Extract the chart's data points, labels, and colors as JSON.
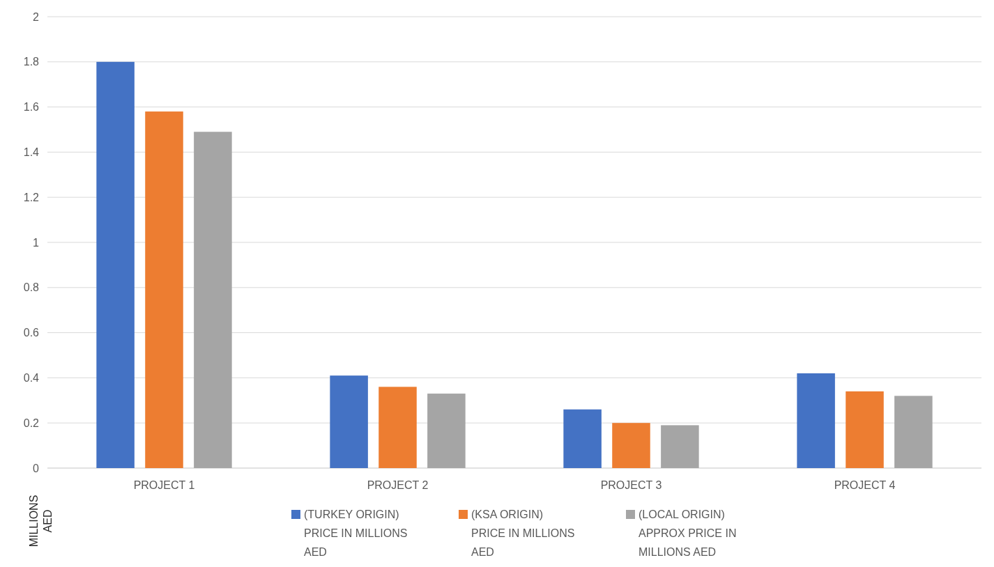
{
  "chart_data": {
    "type": "bar",
    "ylabel": "MILLIONS AED",
    "categories": [
      "PROJECT 1",
      "PROJECT 2",
      "PROJECT 3",
      "PROJECT 4"
    ],
    "series": [
      {
        "name": "(TURKEY ORIGIN) PRICE IN MILLIONS AED",
        "color": "#4472c4",
        "values": [
          1.8,
          0.41,
          0.26,
          0.42
        ]
      },
      {
        "name": "(KSA ORIGIN) PRICE IN MILLIONS AED",
        "color": "#ed7d31",
        "values": [
          1.58,
          0.36,
          0.2,
          0.34
        ]
      },
      {
        "name": "(LOCAL ORIGIN) APPROX PRICE IN MILLIONS AED",
        "color": "#a5a5a5",
        "values": [
          1.49,
          0.33,
          0.19,
          0.32
        ]
      }
    ],
    "ylim": [
      0,
      2
    ],
    "yticks": [
      0,
      0.2,
      0.4,
      0.6,
      0.8,
      1,
      1.2,
      1.4,
      1.6,
      1.8,
      2
    ],
    "grid": "y",
    "legend": "bottom"
  }
}
